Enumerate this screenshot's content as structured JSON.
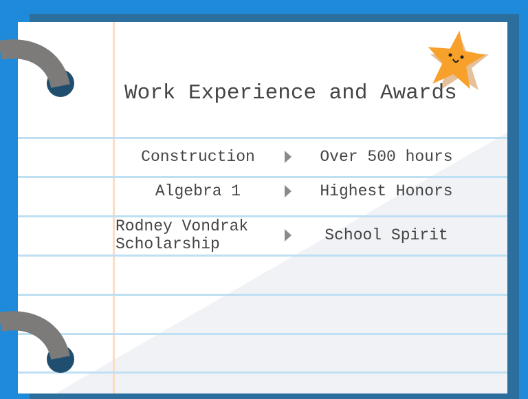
{
  "slide": {
    "title": "Work Experience and Awards",
    "rows": [
      {
        "left": "Construction",
        "right": "Over 500 hours"
      },
      {
        "left": "Algebra 1",
        "right": "Highest Honors"
      },
      {
        "left": "Rodney Vondrak Scholarship",
        "right": "School Spirit"
      }
    ]
  },
  "decorations": {
    "star_icon": "smiling-star",
    "ring_icon": "binder-ring"
  },
  "colors": {
    "background": "#1f8ad9",
    "paper": "#ffffff",
    "rule": "#bfe0f2",
    "margin": "#fbdcc0",
    "star": "#f7a12b"
  }
}
